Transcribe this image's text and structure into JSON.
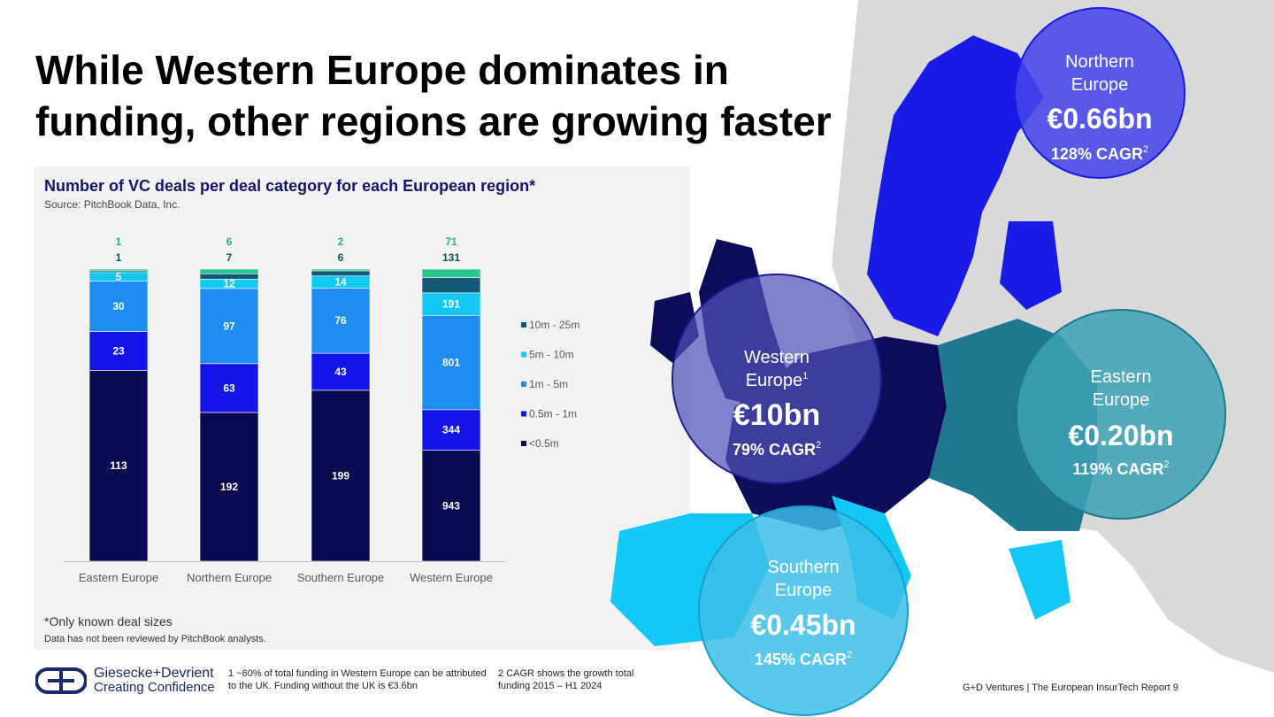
{
  "title": "While Western Europe dominates in funding, other regions are growing faster",
  "chart_data": {
    "type": "bar",
    "stacked": true,
    "title": "Number of VC deals per deal category for each European region*",
    "source": "Source: PitchBook Data, Inc.",
    "categories": [
      "Eastern Europe",
      "Northern Europe",
      "Southern Europe",
      "Western Europe"
    ],
    "series": [
      {
        "name": "<0.5m",
        "color": "#0a0a50",
        "values": [
          113,
          192,
          199,
          943
        ]
      },
      {
        "name": "0.5m - 1m",
        "color": "#1414e6",
        "values": [
          23,
          63,
          43,
          344
        ]
      },
      {
        "name": "1m - 5m",
        "color": "#1e8cf0",
        "values": [
          30,
          97,
          76,
          801
        ]
      },
      {
        "name": "5m - 10m",
        "color": "#14c8f5",
        "values": [
          5,
          12,
          14,
          191
        ]
      },
      {
        "name": "10m - 25m",
        "color": "#0f5a78",
        "values": [
          1,
          7,
          6,
          131
        ]
      },
      {
        "name": "",
        "color": "#28c88c",
        "values": [
          1,
          6,
          2,
          71
        ]
      }
    ],
    "legend_placement": "right",
    "footnote_star": "*Only known deal sizes",
    "disclaimer": "Data has not been reviewed by PitchBook analysts."
  },
  "regions": {
    "northern": {
      "name_line1": "Northern",
      "name_line2": "Europe",
      "amount": "€0.66bn",
      "cagr": "128% CAGR",
      "sup": "2",
      "color": "#4646eb"
    },
    "western": {
      "name_line1": "Western",
      "name_line2": "Europe",
      "name_sup": "1",
      "amount": "€10bn",
      "cagr": "79% CAGR",
      "sup": "2",
      "color": "#4b4bb4"
    },
    "eastern": {
      "name_line1": "Eastern",
      "name_line2": "Europe",
      "amount": "€0.20bn",
      "cagr": "119% CAGR",
      "sup": "2",
      "color": "#3ca0b4"
    },
    "southern": {
      "name_line1": "Southern",
      "name_line2": "Europe",
      "amount": "€0.45bn",
      "cagr": "145% CAGR",
      "sup": "2",
      "color": "#3cbee6"
    }
  },
  "logo": {
    "line1": "Giesecke+Devrient",
    "line2": "Creating Confidence"
  },
  "footnotes": {
    "fn1": "1 ~60% of total funding in Western Europe can be attributed to the UK. Funding without the UK is €3.6bn",
    "fn2": "2 CAGR shows the growth total funding 2015 – H1 2024"
  },
  "page_footer": "G+D Ventures  |  The European InsurTech Report   9"
}
